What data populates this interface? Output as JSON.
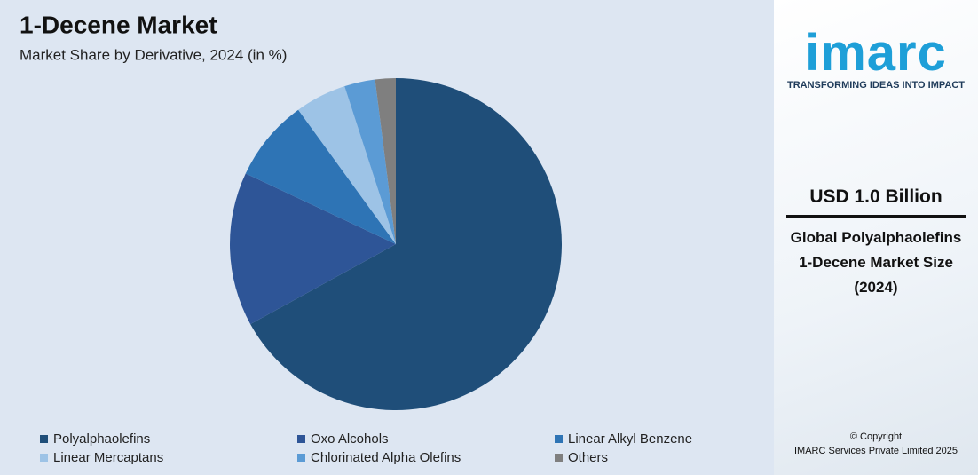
{
  "chart_data": {
    "type": "pie",
    "title": "1-Decene Market",
    "subtitle": "Market Share by Derivative, 2024 (in %)",
    "categories": [
      "Polyalphaolefins",
      "Oxo Alcohols",
      "Linear Alkyl Benzene",
      "Linear Mercaptans",
      "Chlorinated Alpha Olefins",
      "Others"
    ],
    "values": [
      67,
      15,
      8,
      5,
      3,
      2
    ],
    "colors": [
      "#1f4e79",
      "#2e5597",
      "#2e74b5",
      "#9dc3e6",
      "#5b9bd5",
      "#7f7f7f"
    ]
  },
  "panel": {
    "logo": "imarc",
    "tagline": "TRANSFORMING IDEAS INTO IMPACT",
    "value": "USD 1.0 Billion",
    "caption": [
      "Global Polyalphaolefins",
      "1-Decene Market Size",
      "(2024)"
    ],
    "copyright": [
      "© Copyright",
      "IMARC Services Private Limited 2025"
    ]
  }
}
